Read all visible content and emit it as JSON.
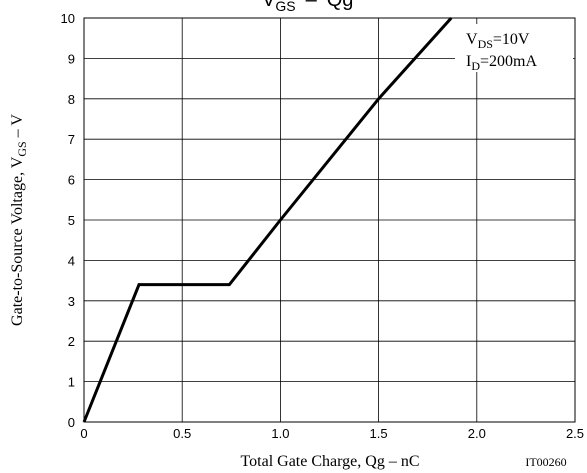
{
  "chart_data": {
    "type": "line",
    "title_parts": {
      "main1": "V",
      "sub1": "GS",
      "sep": "–",
      "main2": "Qg"
    },
    "xlabel": "Total Gate Charge, Qg  –  nC",
    "ylabel_parts": {
      "main": "Gate-to-Source Voltage, V",
      "sub": "GS",
      "suffix": "  –  V"
    },
    "figure_code": "IT00260",
    "xlim": [
      0,
      2.5
    ],
    "ylim": [
      0,
      10
    ],
    "xticks": [
      0,
      0.5,
      1.0,
      1.5,
      2.0,
      2.5
    ],
    "xtick_labels": [
      "0",
      "0.5",
      "1.0",
      "1.5",
      "2.0",
      "2.5"
    ],
    "yticks": [
      0,
      1,
      2,
      3,
      4,
      5,
      6,
      7,
      8,
      9,
      10
    ],
    "ytick_labels": [
      "0",
      "1",
      "2",
      "3",
      "4",
      "5",
      "6",
      "7",
      "8",
      "9",
      "10"
    ],
    "grid": true,
    "conditions": [
      {
        "main": "V",
        "sub": "DS",
        "value": "=10V"
      },
      {
        "main": "I",
        "sub": "D",
        "value": "=200mA"
      }
    ],
    "series": [
      {
        "x": [
          0,
          0.28,
          0.74,
          1.0,
          1.5,
          1.87
        ],
        "y": [
          0,
          3.4,
          3.4,
          5.0,
          8.0,
          10.0
        ]
      }
    ]
  }
}
